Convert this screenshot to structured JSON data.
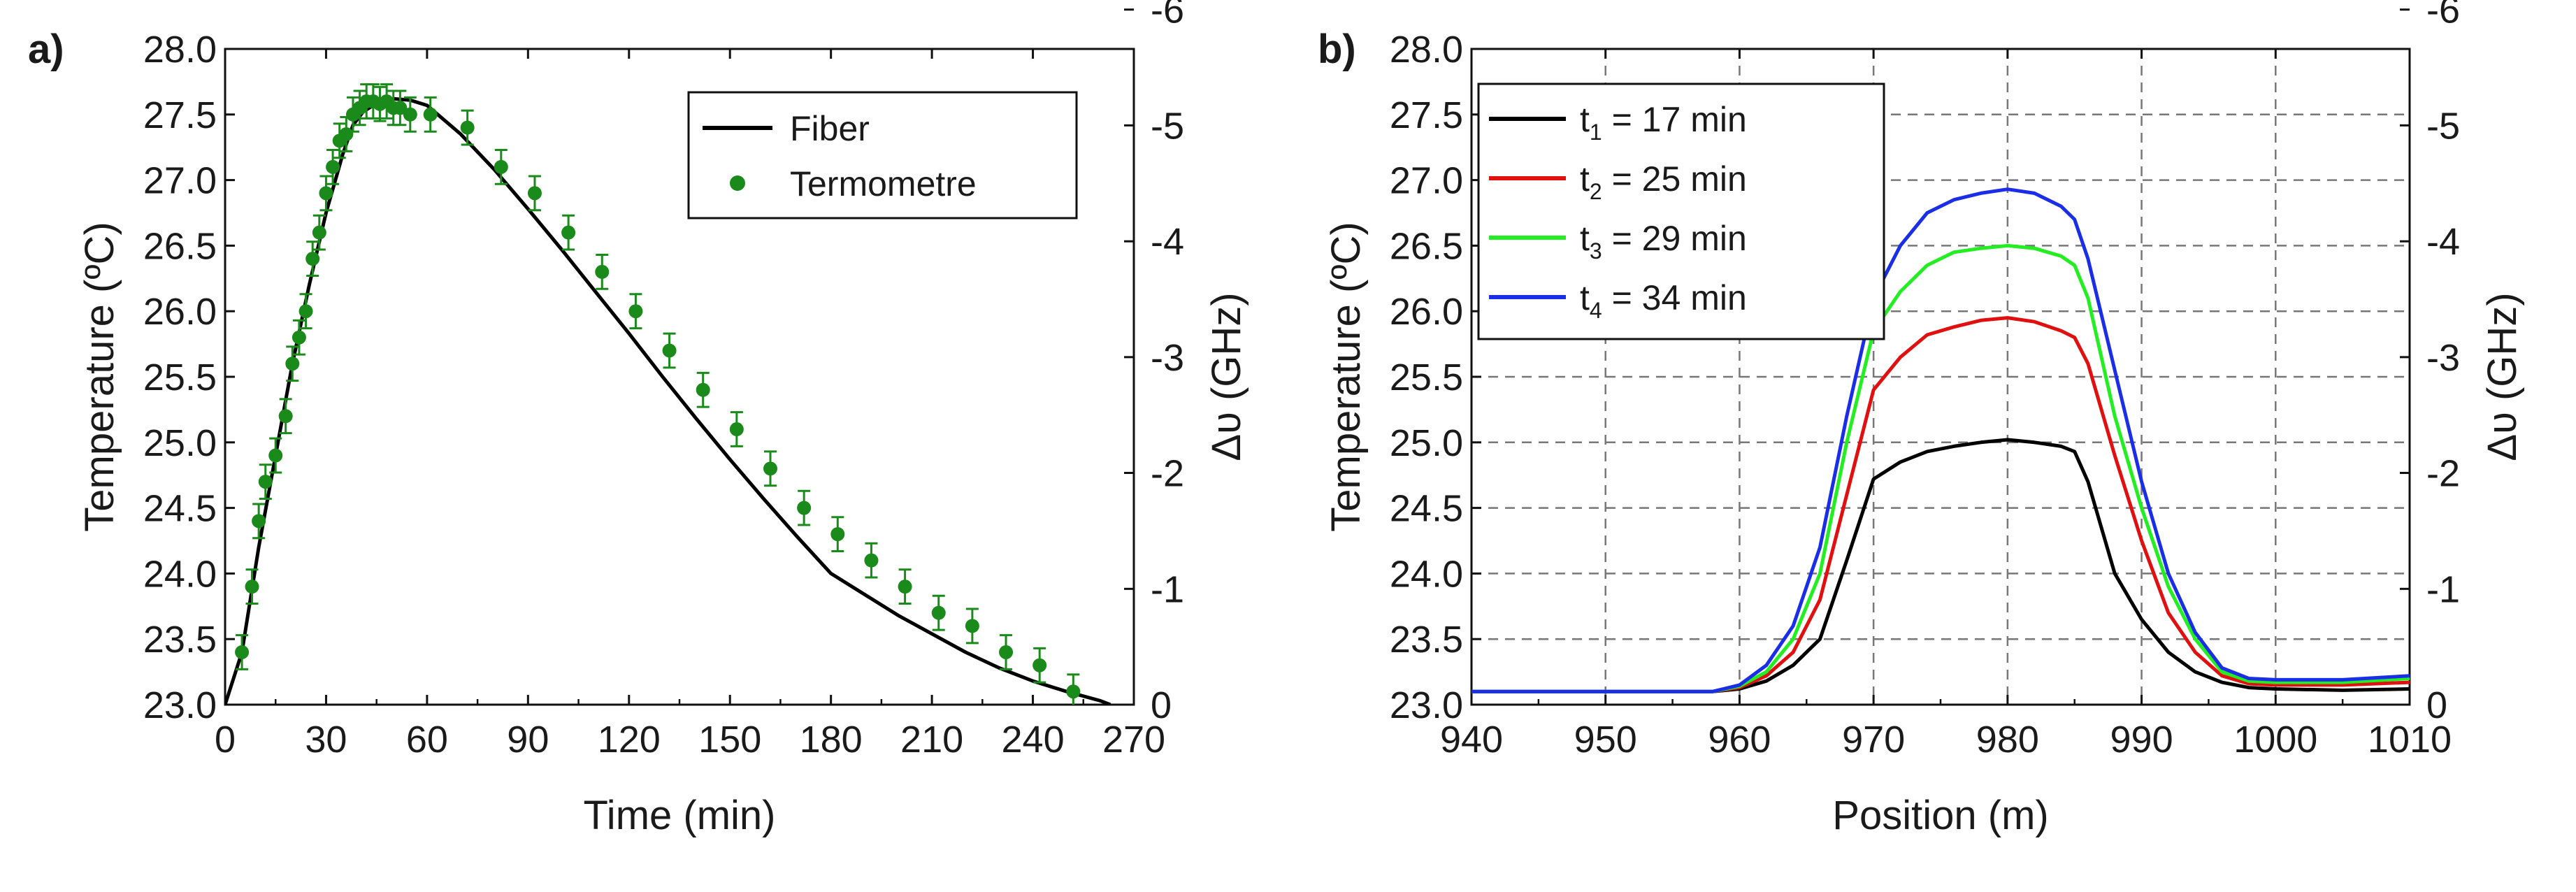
{
  "chart_data": [
    {
      "panel": "a)",
      "type": "line",
      "xlabel": "Time (min)",
      "ylabel": "Temperature (ºC)",
      "y2label": "Δυ (GHz)",
      "xlim": [
        0,
        270
      ],
      "ylim": [
        23.0,
        28.0
      ],
      "xticks": [
        "0",
        "30",
        "60",
        "90",
        "120",
        "150",
        "180",
        "210",
        "240",
        "270"
      ],
      "yticks": [
        "23.0",
        "23.5",
        "24.0",
        "24.5",
        "25.0",
        "25.5",
        "26.0",
        "26.5",
        "27.0",
        "27.5",
        "28.0"
      ],
      "y2ticks": [
        "0",
        "-1",
        "-2",
        "-3",
        "-4",
        "-5",
        "-6"
      ],
      "y2_tick_temps": [
        23.0,
        23.883,
        24.767,
        25.65,
        26.533,
        27.417,
        28.3
      ],
      "legend_position": "top-right",
      "series": [
        {
          "name": "Fiber",
          "style": "line",
          "color": "#000000",
          "x": [
            0,
            5,
            10,
            15,
            20,
            25,
            30,
            35,
            38,
            41,
            44,
            47,
            50,
            55,
            60,
            70,
            80,
            90,
            100,
            110,
            120,
            130,
            140,
            150,
            160,
            170,
            180,
            190,
            200,
            210,
            220,
            230,
            240,
            250,
            260,
            263
          ],
          "y": [
            23.0,
            23.4,
            24.2,
            24.9,
            25.6,
            26.2,
            26.75,
            27.2,
            27.42,
            27.52,
            27.57,
            27.6,
            27.62,
            27.61,
            27.57,
            27.35,
            27.08,
            26.78,
            26.47,
            26.15,
            25.83,
            25.5,
            25.18,
            24.87,
            24.57,
            24.28,
            24.0,
            23.84,
            23.68,
            23.54,
            23.4,
            23.28,
            23.18,
            23.1,
            23.03,
            23.0
          ]
        },
        {
          "name": "Termometre",
          "style": "markers",
          "color": "#1a8a1a",
          "error": 0.13,
          "x": [
            5,
            8,
            10,
            12,
            15,
            18,
            20,
            22,
            24,
            26,
            28,
            30,
            32,
            34,
            36,
            38,
            40,
            42,
            44,
            46,
            48,
            50,
            52,
            55,
            61,
            72,
            82,
            92,
            102,
            112,
            122,
            132,
            142,
            152,
            162,
            172,
            182,
            192,
            202,
            212,
            222,
            232,
            242,
            252
          ],
          "y": [
            23.4,
            23.9,
            24.4,
            24.7,
            24.9,
            25.2,
            25.6,
            25.8,
            26.0,
            26.4,
            26.6,
            26.9,
            27.1,
            27.3,
            27.35,
            27.5,
            27.55,
            27.6,
            27.6,
            27.58,
            27.6,
            27.55,
            27.55,
            27.5,
            27.5,
            27.4,
            27.1,
            26.9,
            26.6,
            26.3,
            26.0,
            25.7,
            25.4,
            25.1,
            24.8,
            24.5,
            24.3,
            24.1,
            23.9,
            23.7,
            23.6,
            23.4,
            23.3,
            23.1
          ]
        }
      ]
    },
    {
      "panel": "b)",
      "type": "line",
      "xlabel": "Position (m)",
      "ylabel": "Temperature (ºC)",
      "y2label": "Δυ (GHz)",
      "xlim": [
        940,
        1010
      ],
      "ylim": [
        23.0,
        28.0
      ],
      "grid": true,
      "xticks": [
        "940",
        "950",
        "960",
        "970",
        "980",
        "990",
        "1000",
        "1010"
      ],
      "yticks": [
        "23.0",
        "23.5",
        "24.0",
        "24.5",
        "25.0",
        "25.5",
        "26.0",
        "26.5",
        "27.0",
        "27.5",
        "28.0"
      ],
      "y2ticks": [
        "0",
        "-1",
        "-2",
        "-3",
        "-4",
        "-5",
        "-6"
      ],
      "y2_tick_temps": [
        23.0,
        23.883,
        24.767,
        25.65,
        26.533,
        27.417,
        28.3
      ],
      "legend_position": "top-left",
      "x": [
        940,
        950,
        958,
        960,
        962,
        964,
        966,
        968,
        970,
        972,
        974,
        976,
        978,
        980,
        982,
        984,
        985,
        986,
        988,
        990,
        992,
        994,
        996,
        998,
        1000,
        1005,
        1010
      ],
      "series": [
        {
          "name_main": "t",
          "name_sub": "1",
          "name_rest": " = 17 min",
          "color": "#000000",
          "y": [
            23.1,
            23.1,
            23.1,
            23.12,
            23.18,
            23.3,
            23.5,
            24.1,
            24.72,
            24.85,
            24.93,
            24.97,
            25.0,
            25.02,
            25.0,
            24.97,
            24.93,
            24.7,
            24.0,
            23.65,
            23.4,
            23.25,
            23.17,
            23.13,
            23.12,
            23.11,
            23.12
          ]
        },
        {
          "name_main": "t",
          "name_sub": "2",
          "name_rest": " = 25 min",
          "color": "#e01010",
          "y": [
            23.1,
            23.1,
            23.1,
            23.13,
            23.22,
            23.4,
            23.8,
            24.6,
            25.4,
            25.65,
            25.82,
            25.88,
            25.93,
            25.95,
            25.92,
            25.85,
            25.8,
            25.6,
            24.9,
            24.25,
            23.7,
            23.4,
            23.22,
            23.16,
            23.15,
            23.15,
            23.17
          ]
        },
        {
          "name_main": "t",
          "name_sub": "3",
          "name_rest": " = 29 min",
          "color": "#22ee22",
          "y": [
            23.1,
            23.1,
            23.1,
            23.14,
            23.25,
            23.5,
            24.0,
            25.0,
            25.85,
            26.15,
            26.35,
            26.45,
            26.48,
            26.5,
            26.48,
            26.42,
            26.35,
            26.1,
            25.2,
            24.5,
            23.9,
            23.5,
            23.25,
            23.18,
            23.17,
            23.17,
            23.2
          ]
        },
        {
          "name_main": "t",
          "name_sub": "4",
          "name_rest": " = 34 min",
          "color": "#1a2ee8",
          "y": [
            23.1,
            23.1,
            23.1,
            23.15,
            23.3,
            23.6,
            24.2,
            25.2,
            26.1,
            26.5,
            26.75,
            26.85,
            26.9,
            26.93,
            26.9,
            26.8,
            26.7,
            26.4,
            25.55,
            24.7,
            24.0,
            23.55,
            23.28,
            23.2,
            23.19,
            23.19,
            23.22
          ]
        }
      ]
    }
  ]
}
